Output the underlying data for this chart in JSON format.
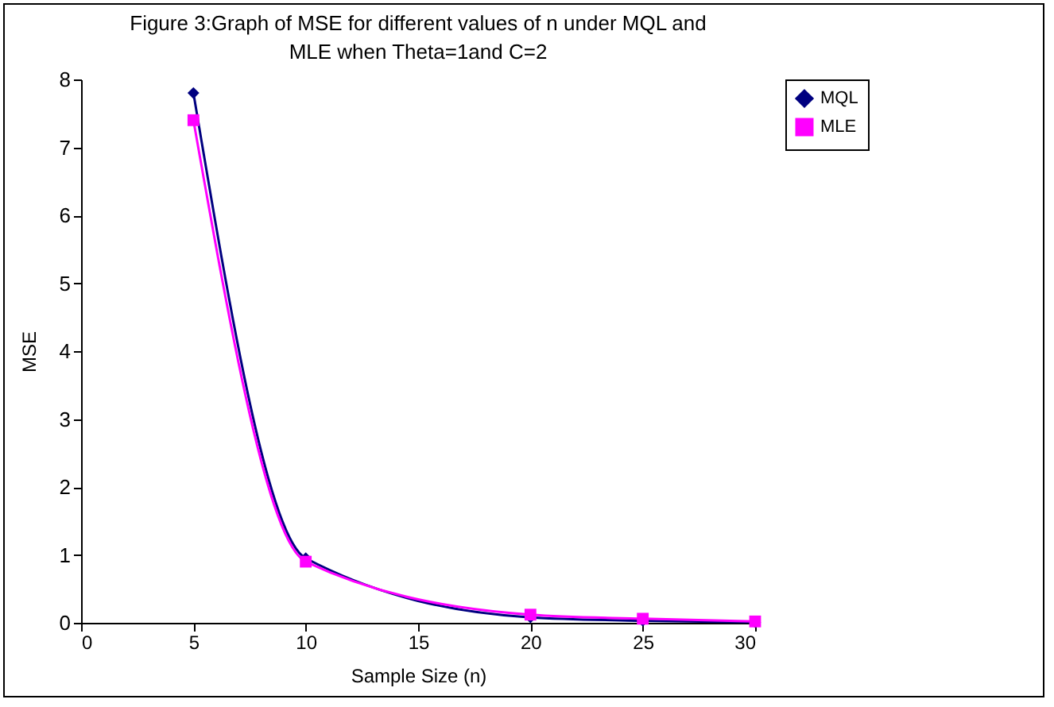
{
  "chart_data": {
    "type": "line",
    "title": "Figure 3:Graph of MSE for different values of n under MQL and MLE when Theta=1and C=2",
    "xlabel": "Sample Size (n)",
    "ylabel": "MSE",
    "x": [
      5,
      10,
      20,
      25,
      30
    ],
    "series": [
      {
        "name": "MQL",
        "color": "#000080",
        "marker": "diamond",
        "values": [
          7.8,
          0.95,
          0.08,
          0.03,
          0.01
        ]
      },
      {
        "name": "MLE",
        "color": "#ff00ff",
        "marker": "square",
        "values": [
          7.4,
          0.9,
          0.12,
          0.06,
          0.02
        ]
      }
    ],
    "xlim": [
      0,
      30
    ],
    "xticks": [
      0,
      5,
      10,
      15,
      20,
      25,
      30
    ],
    "ylim": [
      0,
      8
    ],
    "yticks": [
      0,
      1,
      2,
      3,
      4,
      5,
      6,
      7,
      8
    ],
    "grid": false,
    "legend": "right",
    "line_style": "solid"
  }
}
